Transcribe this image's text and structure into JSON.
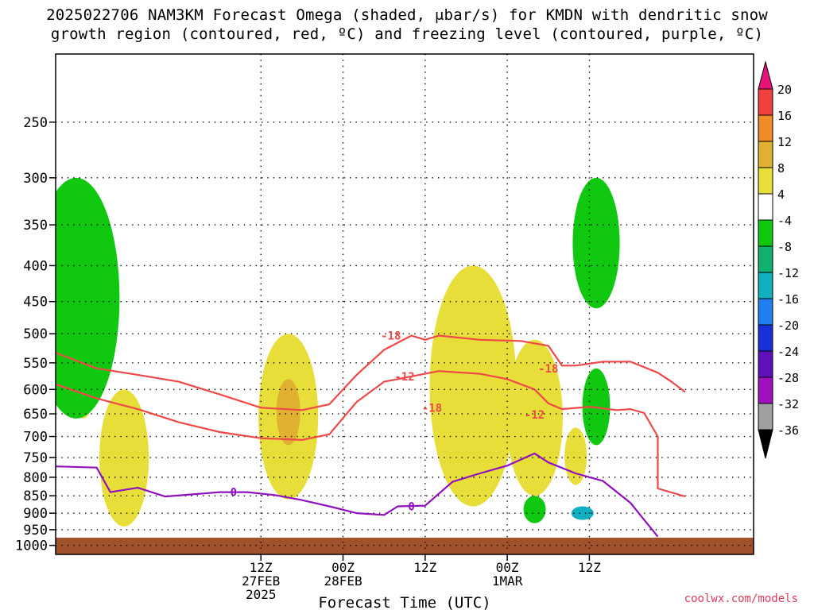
{
  "header": {
    "title_line1": "2025022706 NAM3KM Forecast Omega (shaded, μbar/s) for KMDN with dendritic snow",
    "title_line2": "growth region (contoured, red, ºC) and freezing level (contoured, purple, ºC)"
  },
  "footer": {
    "credit": "coolwx.com/models"
  },
  "chart_data": {
    "type": "heatmap",
    "title": "2025022706 NAM3KM Forecast Omega (shaded, μbar/s) for KMDN with dendritic snow growth region (contoured, red, ºC) and freezing level (contoured, purple, ºC)",
    "xlabel": "Forecast Time (UTC)",
    "ylabel": "",
    "y_scale": "log-pressure, inverted",
    "ylim": [
      1030,
      200
    ],
    "y_ticks": [
      250,
      300,
      350,
      400,
      450,
      500,
      550,
      600,
      650,
      700,
      750,
      800,
      850,
      900,
      950,
      1000
    ],
    "xlim": [
      -18,
      84
    ],
    "x_ticks": [
      {
        "hour": 12,
        "label": "12Z",
        "sub1": "27FEB",
        "sub2": "2025"
      },
      {
        "hour": 24,
        "label": "00Z",
        "sub1": "28FEB",
        "sub2": ""
      },
      {
        "hour": 36,
        "label": "12Z",
        "sub1": "",
        "sub2": ""
      },
      {
        "hour": 48,
        "label": "00Z",
        "sub1": "1MAR",
        "sub2": ""
      },
      {
        "hour": 60,
        "label": "12Z",
        "sub1": "",
        "sub2": ""
      }
    ],
    "grid": true,
    "colorbar": {
      "labels": [
        "20",
        "16",
        "12",
        "8",
        "4",
        "-4",
        "-8",
        "-12",
        "-16",
        "-20",
        "-24",
        "-28",
        "-32",
        "-36"
      ],
      "colors": [
        "#e8137a",
        "#f04040",
        "#f08c28",
        "#e0b030",
        "#e8de3a",
        "#ffffff",
        "#10c810",
        "#10b070",
        "#10b0c0",
        "#2080f0",
        "#1830d8",
        "#6010b8",
        "#a010c0",
        "#a0a0a0",
        "#000000"
      ]
    },
    "ground": {
      "top_hpa": 975,
      "color": "#a0522d"
    },
    "series": [
      {
        "name": "-18",
        "color": "#f04848",
        "points": [
          [
            -18,
            532
          ],
          [
            -12,
            560
          ],
          [
            -6,
            572
          ],
          [
            0,
            585
          ],
          [
            6,
            610
          ],
          [
            12,
            637
          ],
          [
            18,
            642
          ],
          [
            22,
            630
          ],
          [
            26,
            572
          ],
          [
            30,
            527
          ],
          [
            34,
            503
          ],
          [
            36,
            510
          ],
          [
            38,
            503
          ],
          [
            44,
            510
          ],
          [
            50,
            512
          ],
          [
            54,
            520
          ],
          [
            56,
            555
          ],
          [
            58,
            555
          ],
          [
            62,
            548
          ],
          [
            66,
            548
          ],
          [
            70,
            568
          ],
          [
            72,
            585
          ],
          [
            74,
            605
          ]
        ],
        "label_points": [
          [
            31,
            503
          ],
          [
            37,
            637
          ],
          [
            54,
            560
          ]
        ]
      },
      {
        "name": "-12",
        "color": "#f04848",
        "points": [
          [
            -18,
            590
          ],
          [
            -12,
            618
          ],
          [
            -6,
            640
          ],
          [
            0,
            668
          ],
          [
            6,
            690
          ],
          [
            12,
            704
          ],
          [
            18,
            708
          ],
          [
            22,
            695
          ],
          [
            26,
            625
          ],
          [
            30,
            585
          ],
          [
            34,
            575
          ],
          [
            38,
            565
          ],
          [
            44,
            570
          ],
          [
            48,
            580
          ],
          [
            52,
            600
          ],
          [
            54,
            628
          ],
          [
            56,
            640
          ],
          [
            60,
            635
          ],
          [
            64,
            642
          ],
          [
            66,
            640
          ],
          [
            68,
            648
          ],
          [
            70,
            700
          ],
          [
            70,
            830
          ],
          [
            74,
            852
          ]
        ],
        "label_points": [
          [
            33,
            575
          ],
          [
            52,
            652
          ]
        ]
      },
      {
        "name": "0",
        "color": "#9010c0",
        "points": [
          [
            -18,
            772
          ],
          [
            -12,
            775
          ],
          [
            -10,
            840
          ],
          [
            -6,
            828
          ],
          [
            -2,
            852
          ],
          [
            2,
            846
          ],
          [
            6,
            840
          ],
          [
            10,
            840
          ],
          [
            14,
            848
          ],
          [
            18,
            862
          ],
          [
            22,
            880
          ],
          [
            26,
            900
          ],
          [
            30,
            905
          ],
          [
            32,
            880
          ],
          [
            36,
            878
          ],
          [
            40,
            812
          ],
          [
            44,
            790
          ],
          [
            48,
            770
          ],
          [
            52,
            740
          ],
          [
            54,
            762
          ],
          [
            58,
            790
          ],
          [
            62,
            810
          ],
          [
            66,
            870
          ],
          [
            70,
            972
          ]
        ],
        "label_points": [
          [
            8,
            840
          ],
          [
            34,
            880
          ]
        ]
      }
    ],
    "shaded_regions": [
      {
        "value": "4",
        "color": "#e8de3a",
        "hour": -14,
        "p_top": 530,
        "p_bot": 660
      },
      {
        "value": "4",
        "color": "#e8de3a",
        "hour": -8,
        "p_top": 600,
        "p_bot": 940
      },
      {
        "value": "4",
        "color": "#e8de3a",
        "hour": 16,
        "p_top": 500,
        "p_bot": 860
      },
      {
        "value": "4",
        "color": "#e8de3a",
        "hour": 43,
        "p_top": 400,
        "p_bot": 880
      },
      {
        "value": "4",
        "color": "#e8de3a",
        "hour": 52,
        "p_top": 510,
        "p_bot": 850
      },
      {
        "value": "4",
        "color": "#e8de3a",
        "hour": 58,
        "p_top": 680,
        "p_bot": 820
      },
      {
        "value": "8",
        "color": "#e0b030",
        "hour": 16,
        "p_top": 580,
        "p_bot": 720
      },
      {
        "value": "-4",
        "color": "#10c810",
        "hour": -15,
        "p_top": 300,
        "p_bot": 660
      },
      {
        "value": "-4",
        "color": "#10c810",
        "hour": 61,
        "p_top": 300,
        "p_bot": 460
      },
      {
        "value": "-4",
        "color": "#10c810",
        "hour": 61,
        "p_top": 560,
        "p_bot": 720
      },
      {
        "value": "-4",
        "color": "#10c810",
        "hour": 52,
        "p_top": 850,
        "p_bot": 930
      },
      {
        "value": "-12",
        "color": "#10b0c0",
        "hour": 59,
        "p_top": 880,
        "p_bot": 920
      }
    ]
  }
}
